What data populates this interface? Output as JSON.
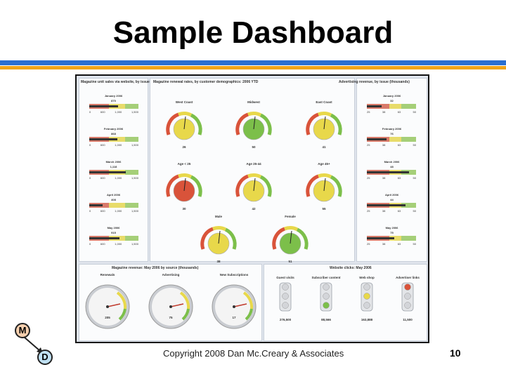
{
  "slide": {
    "title": "Sample Dashboard",
    "footer": "Copyright 2008 Dan Mc.Creary & Associates",
    "page_number": "10",
    "logo": {
      "m_letter": "M",
      "d_letter": "D"
    }
  },
  "dashboard": {
    "left_panel": {
      "heading": "Magazine unit sales via website, by issue",
      "ticks": [
        "0",
        "600",
        "1,000",
        "1,500"
      ],
      "items": [
        {
          "label": "January 2006",
          "value": "870",
          "fraction": 0.58
        },
        {
          "label": "February 2006",
          "value": "868",
          "fraction": 0.57
        },
        {
          "label": "March 2006",
          "value": "1,118",
          "fraction": 0.74
        },
        {
          "label": "April 2006",
          "value": "408",
          "fraction": 0.27
        },
        {
          "label": "May 2006",
          "value": "915",
          "fraction": 0.61
        }
      ]
    },
    "center_panel": {
      "heading": "Magazine renewal rates, by customer demographics: 2006 YTD",
      "gauges": [
        {
          "label": "West Coast",
          "value": "26",
          "fill": "#e8d84a"
        },
        {
          "label": "Midwest",
          "value": "50",
          "fill": "#7cbf4a"
        },
        {
          "label": "East Coast",
          "value": "41",
          "fill": "#e8d84a"
        },
        {
          "label": "Age < 25",
          "value": "30",
          "fill": "#d9533a"
        },
        {
          "label": "Age 25-44",
          "value": "42",
          "fill": "#e8d84a"
        },
        {
          "label": "Age 45+",
          "value": "55",
          "fill": "#e8d84a"
        },
        {
          "label": "Male",
          "value": "38",
          "fill": "#e8d84a"
        },
        {
          "label": "Female",
          "value": "51",
          "fill": "#7cbf4a"
        }
      ]
    },
    "right_panel": {
      "heading": "Advertising revenue, by issue (thousands)",
      "ticks": [
        "25",
        "38",
        "63",
        "50"
      ],
      "items": [
        {
          "label": "January 2006",
          "value": "32",
          "fraction": 0.3
        },
        {
          "label": "February 2006",
          "value": "76",
          "fraction": 0.4
        },
        {
          "label": "March 2006",
          "value": "48",
          "fraction": 0.85
        },
        {
          "label": "April 2006",
          "value": "44",
          "fraction": 0.78
        },
        {
          "label": "May 2006",
          "value": "75",
          "fraction": 0.55
        }
      ]
    },
    "revenue_panel": {
      "heading": "Magazine revenue: May 2006 by source (thousands)",
      "dials": [
        {
          "label": "Renewals",
          "value": "205"
        },
        {
          "label": "Advertising",
          "value": "75"
        },
        {
          "label": "New Subscriptions",
          "value": "17"
        }
      ]
    },
    "clicks_panel": {
      "heading": "Website clicks: May 2006",
      "lights": [
        {
          "label": "Guest visits",
          "value": "276,500",
          "active": "none"
        },
        {
          "label": "Subscriber content",
          "value": "88,566",
          "active": "green"
        },
        {
          "label": "Web shop",
          "value": "163,888",
          "active": "yellow"
        },
        {
          "label": "Advertiser links",
          "value": "11,500",
          "active": "red"
        }
      ]
    },
    "colors": {
      "red": "#d9533a",
      "yellow": "#e8d84a",
      "green": "#7cbf4a",
      "bar_red": "#d97a6a",
      "bar_yellow": "#e8dc6a",
      "bar_green": "#a5cf78"
    }
  }
}
